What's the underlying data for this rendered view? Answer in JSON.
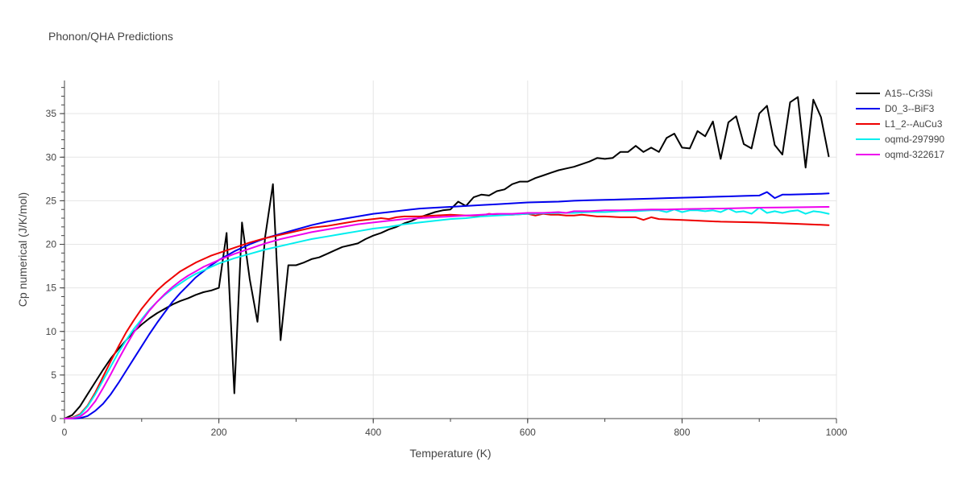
{
  "chart_data": {
    "type": "line",
    "title": "Phonon/QHA Predictions",
    "xlabel": "Temperature (K)",
    "ylabel": "Cp numerical (J/K/mol)",
    "xlim": [
      0,
      1000
    ],
    "ylim": [
      0,
      38.8
    ],
    "xticks": [
      0,
      200,
      400,
      600,
      800,
      1000
    ],
    "yticks": [
      0,
      5,
      10,
      15,
      20,
      25,
      30,
      35
    ],
    "grid": true,
    "legend_position": "top-right",
    "series": [
      {
        "name": "A15--Cr3Si",
        "color": "#000000",
        "x": [
          0,
          10,
          20,
          30,
          40,
          50,
          60,
          70,
          80,
          90,
          100,
          110,
          120,
          130,
          140,
          150,
          160,
          170,
          180,
          190,
          200,
          210,
          220,
          230,
          240,
          250,
          260,
          270,
          280,
          290,
          300,
          310,
          320,
          330,
          340,
          350,
          360,
          370,
          380,
          390,
          400,
          410,
          420,
          430,
          440,
          450,
          460,
          470,
          480,
          490,
          500,
          510,
          520,
          530,
          540,
          550,
          560,
          570,
          580,
          590,
          600,
          610,
          620,
          630,
          640,
          650,
          660,
          670,
          680,
          690,
          700,
          710,
          720,
          730,
          740,
          750,
          760,
          770,
          780,
          790,
          800,
          810,
          820,
          830,
          840,
          850,
          860,
          870,
          880,
          890,
          900,
          910,
          920,
          930,
          940,
          950,
          960,
          970,
          980,
          990
        ],
        "y": [
          0,
          0.4,
          1.4,
          2.8,
          4.2,
          5.6,
          6.9,
          8.0,
          9.0,
          10.0,
          10.8,
          11.5,
          12.1,
          12.6,
          13.1,
          13.5,
          13.8,
          14.2,
          14.5,
          14.7,
          15.0,
          21.3,
          2.9,
          22.5,
          16.0,
          11.1,
          20.9,
          26.9,
          9.0,
          17.6,
          17.6,
          17.9,
          18.3,
          18.5,
          18.9,
          19.3,
          19.7,
          19.9,
          20.1,
          20.6,
          21.0,
          21.3,
          21.7,
          22.0,
          22.4,
          22.7,
          23.1,
          23.4,
          23.7,
          23.9,
          24.0,
          24.9,
          24.4,
          25.4,
          25.7,
          25.6,
          26.1,
          26.3,
          26.9,
          27.2,
          27.2,
          27.6,
          27.9,
          28.2,
          28.5,
          28.7,
          28.9,
          29.2,
          29.5,
          29.9,
          29.8,
          29.9,
          30.6,
          30.6,
          31.3,
          30.6,
          31.1,
          30.6,
          32.2,
          32.7,
          31.1,
          31.0,
          33.0,
          32.4,
          34.1,
          29.8,
          34.0,
          34.7,
          31.5,
          31.0,
          35.0,
          35.9,
          31.4,
          30.3,
          36.3,
          36.9,
          28.8,
          36.6,
          34.6,
          30.1
        ]
      },
      {
        "name": "D0_3--BiF3",
        "color": "#0000ee",
        "x": [
          0,
          10,
          20,
          30,
          40,
          50,
          60,
          70,
          80,
          90,
          100,
          110,
          120,
          130,
          140,
          150,
          160,
          170,
          180,
          190,
          200,
          220,
          240,
          260,
          280,
          300,
          320,
          340,
          360,
          380,
          400,
          420,
          440,
          460,
          480,
          500,
          520,
          540,
          560,
          580,
          600,
          620,
          640,
          660,
          680,
          700,
          720,
          740,
          760,
          780,
          800,
          820,
          840,
          860,
          880,
          900,
          910,
          920,
          930,
          940,
          960,
          980,
          990
        ],
        "y": [
          0,
          0,
          0.05,
          0.3,
          0.9,
          1.7,
          2.8,
          4.1,
          5.5,
          6.9,
          8.3,
          9.7,
          11.0,
          12.2,
          13.4,
          14.4,
          15.3,
          16.2,
          16.9,
          17.6,
          18.2,
          19.2,
          20.0,
          20.7,
          21.2,
          21.7,
          22.2,
          22.6,
          22.9,
          23.2,
          23.5,
          23.7,
          23.9,
          24.1,
          24.2,
          24.3,
          24.4,
          24.5,
          24.6,
          24.7,
          24.8,
          24.85,
          24.9,
          25.0,
          25.05,
          25.1,
          25.15,
          25.2,
          25.25,
          25.3,
          25.35,
          25.4,
          25.45,
          25.5,
          25.55,
          25.6,
          26.0,
          25.3,
          25.7,
          25.7,
          25.75,
          25.8,
          25.85
        ]
      },
      {
        "name": "L1_2--AuCu3",
        "color": "#ee0000",
        "x": [
          0,
          10,
          20,
          30,
          40,
          50,
          60,
          70,
          80,
          90,
          100,
          110,
          120,
          130,
          140,
          150,
          160,
          170,
          180,
          190,
          200,
          220,
          240,
          260,
          280,
          300,
          320,
          340,
          360,
          380,
          400,
          410,
          420,
          430,
          440,
          460,
          480,
          500,
          520,
          540,
          550,
          560,
          580,
          600,
          610,
          620,
          630,
          640,
          650,
          660,
          670,
          680,
          690,
          700,
          720,
          740,
          750,
          760,
          770,
          800,
          850,
          900,
          950,
          990
        ],
        "y": [
          0,
          0.1,
          0.5,
          1.5,
          3.0,
          4.8,
          6.6,
          8.3,
          9.9,
          11.3,
          12.6,
          13.7,
          14.7,
          15.5,
          16.2,
          16.9,
          17.4,
          17.9,
          18.3,
          18.7,
          19.0,
          19.6,
          20.2,
          20.7,
          21.1,
          21.5,
          21.9,
          22.1,
          22.4,
          22.7,
          22.9,
          23.0,
          22.9,
          23.1,
          23.2,
          23.2,
          23.3,
          23.4,
          23.3,
          23.3,
          23.5,
          23.4,
          23.4,
          23.5,
          23.3,
          23.5,
          23.4,
          23.4,
          23.3,
          23.3,
          23.4,
          23.3,
          23.2,
          23.2,
          23.1,
          23.1,
          22.8,
          23.1,
          22.9,
          22.8,
          22.6,
          22.5,
          22.35,
          22.2
        ]
      },
      {
        "name": "oqmd-297990",
        "color": "#00eeee",
        "x": [
          0,
          10,
          20,
          30,
          40,
          50,
          60,
          70,
          80,
          90,
          100,
          110,
          120,
          130,
          140,
          150,
          160,
          170,
          180,
          190,
          200,
          220,
          240,
          260,
          280,
          300,
          320,
          340,
          360,
          380,
          400,
          420,
          440,
          460,
          480,
          500,
          520,
          540,
          560,
          580,
          600,
          620,
          640,
          660,
          680,
          700,
          720,
          740,
          760,
          770,
          780,
          790,
          800,
          810,
          820,
          830,
          840,
          850,
          860,
          870,
          880,
          890,
          900,
          910,
          920,
          930,
          940,
          950,
          960,
          970,
          980,
          990
        ],
        "y": [
          0,
          0.05,
          0.4,
          1.4,
          2.8,
          4.4,
          6.0,
          7.6,
          9.0,
          10.3,
          11.4,
          12.5,
          13.4,
          14.2,
          14.9,
          15.5,
          16.1,
          16.6,
          17.0,
          17.4,
          17.8,
          18.4,
          18.9,
          19.4,
          19.8,
          20.2,
          20.6,
          20.9,
          21.2,
          21.5,
          21.8,
          22.0,
          22.3,
          22.5,
          22.7,
          22.9,
          23.0,
          23.2,
          23.3,
          23.4,
          23.5,
          23.55,
          23.6,
          23.6,
          23.7,
          23.7,
          23.8,
          23.8,
          23.9,
          23.9,
          23.7,
          24.0,
          23.7,
          23.9,
          23.9,
          23.8,
          23.9,
          23.7,
          24.1,
          23.7,
          23.8,
          23.5,
          24.2,
          23.6,
          23.8,
          23.6,
          23.8,
          23.9,
          23.5,
          23.8,
          23.7,
          23.5
        ]
      },
      {
        "name": "oqmd-322617",
        "color": "#ee00ee",
        "x": [
          0,
          10,
          20,
          30,
          40,
          50,
          60,
          70,
          80,
          90,
          100,
          110,
          120,
          130,
          140,
          150,
          160,
          170,
          180,
          190,
          200,
          220,
          240,
          260,
          280,
          300,
          320,
          340,
          360,
          380,
          400,
          420,
          440,
          460,
          480,
          500,
          520,
          540,
          560,
          580,
          600,
          620,
          640,
          650,
          660,
          680,
          700,
          720,
          740,
          760,
          780,
          800,
          850,
          900,
          950,
          990
        ],
        "y": [
          0,
          0.02,
          0.2,
          0.9,
          2.0,
          3.5,
          5.1,
          6.8,
          8.4,
          9.9,
          11.2,
          12.4,
          13.4,
          14.3,
          15.1,
          15.8,
          16.4,
          16.9,
          17.4,
          17.8,
          18.2,
          18.9,
          19.5,
          20.1,
          20.6,
          21.0,
          21.4,
          21.7,
          22.0,
          22.3,
          22.5,
          22.7,
          22.9,
          23.0,
          23.1,
          23.2,
          23.3,
          23.4,
          23.5,
          23.5,
          23.6,
          23.6,
          23.7,
          23.6,
          23.8,
          23.8,
          23.9,
          23.9,
          23.95,
          24.0,
          24.0,
          24.05,
          24.1,
          24.2,
          24.25,
          24.3
        ]
      }
    ]
  }
}
